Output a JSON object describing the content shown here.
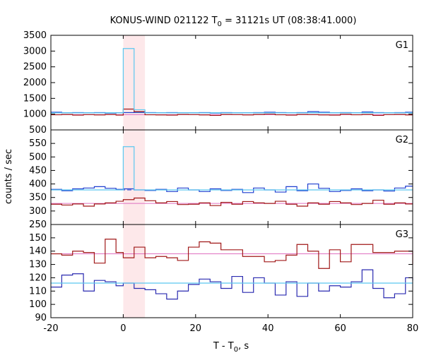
{
  "chart_data": {
    "type": "line",
    "title": {
      "main": "KONUS-WIND 021122 T",
      "sub": "0",
      "rest": " = 31121s UT (08:38:41.000)"
    },
    "xlabel": {
      "main": "T - T",
      "sub": "0",
      "rest": ", s"
    },
    "ylabel": "counts / sec",
    "xlim": [
      -20,
      80
    ],
    "xticks": [
      "-20",
      "0",
      "20",
      "40",
      "60",
      "80"
    ],
    "highlight": {
      "x0": 0,
      "x1": 6,
      "color": "#fde8ea"
    },
    "panels": [
      {
        "name": "G1",
        "ylim": [
          500,
          3500
        ],
        "yticks": [
          "500",
          "1000",
          "1500",
          "2000",
          "2500",
          "3000",
          "3500"
        ],
        "series": [
          {
            "color": "#1f3fd0",
            "x": [
              -20,
              -17,
              -14,
              -11,
              -8,
              -5,
              -2,
              0,
              3,
              6,
              9,
              12,
              15,
              18,
              21,
              24,
              27,
              30,
              33,
              36,
              39,
              42,
              45,
              48,
              51,
              54,
              57,
              60,
              63,
              66,
              69,
              72,
              75,
              78,
              80
            ],
            "values": [
              1060,
              1040,
              1050,
              1040,
              1050,
              1030,
              1040,
              1050,
              1060,
              1050,
              1040,
              1050,
              1040,
              1040,
              1050,
              1030,
              1050,
              1040,
              1040,
              1050,
              1060,
              1050,
              1040,
              1050,
              1080,
              1060,
              1040,
              1050,
              1040,
              1070,
              1050,
              1040,
              1050,
              1060,
              1060
            ]
          },
          {
            "color": "#a01818",
            "x": [
              -20,
              -17,
              -14,
              -11,
              -8,
              -5,
              -2,
              0,
              3,
              6,
              9,
              12,
              15,
              18,
              21,
              24,
              27,
              30,
              33,
              36,
              39,
              42,
              45,
              48,
              51,
              54,
              57,
              60,
              63,
              66,
              69,
              72,
              75,
              78,
              80
            ],
            "values": [
              980,
              990,
              970,
              985,
              975,
              990,
              970,
              1160,
              1080,
              980,
              975,
              970,
              990,
              985,
              975,
              960,
              990,
              985,
              975,
              990,
              1000,
              980,
              970,
              990,
              985,
              975,
              970,
              995,
              980,
              990,
              960,
              985,
              990,
              975,
              975
            ]
          },
          {
            "color": "#5bc8f0",
            "x": [
              -20,
              -17,
              -14,
              -11,
              -8,
              -5,
              -2,
              0,
              3,
              6,
              9,
              12,
              15,
              18,
              21,
              24,
              27,
              30,
              33,
              36,
              39,
              42,
              45,
              48,
              51,
              54,
              57,
              60,
              63,
              66,
              69,
              72,
              75,
              78,
              80
            ],
            "values": [
              1040,
              1040,
              1040,
              1040,
              1040,
              1040,
              1040,
              3080,
              1140,
              1040,
              1040,
              1040,
              1040,
              1040,
              1040,
              1040,
              1040,
              1040,
              1040,
              1040,
              1040,
              1040,
              1040,
              1040,
              1040,
              1040,
              1040,
              1040,
              1040,
              1040,
              1040,
              1040,
              1040,
              1040,
              1040
            ]
          }
        ],
        "baselines": [
          {
            "color": "#5bc8f0",
            "value": 1045,
            "dash": false
          },
          {
            "color": "#e070c0",
            "value": 985,
            "dash": false
          }
        ]
      },
      {
        "name": "G2",
        "ylim": [
          250,
          600
        ],
        "yticks": [
          "250",
          "300",
          "350",
          "400",
          "450",
          "500",
          "550",
          "600"
        ],
        "series": [
          {
            "color": "#1f3fd0",
            "x": [
              -20,
              -17,
              -14,
              -11,
              -8,
              -5,
              -2,
              0,
              3,
              6,
              9,
              12,
              15,
              18,
              21,
              24,
              27,
              30,
              33,
              36,
              39,
              42,
              45,
              48,
              51,
              54,
              57,
              60,
              63,
              66,
              69,
              72,
              75,
              78,
              80
            ],
            "values": [
              380,
              375,
              382,
              385,
              390,
              384,
              380,
              382,
              378,
              376,
              380,
              372,
              385,
              378,
              372,
              382,
              376,
              380,
              368,
              385,
              378,
              370,
              390,
              375,
              400,
              384,
              372,
              376,
              382,
              375,
              378,
              374,
              385,
              392,
              392
            ]
          },
          {
            "color": "#a01818",
            "x": [
              -20,
              -17,
              -14,
              -11,
              -8,
              -5,
              -2,
              0,
              3,
              6,
              9,
              12,
              15,
              18,
              21,
              24,
              27,
              30,
              33,
              36,
              39,
              42,
              45,
              48,
              51,
              54,
              57,
              60,
              63,
              66,
              69,
              72,
              75,
              78,
              80
            ],
            "values": [
              325,
              322,
              326,
              318,
              326,
              330,
              336,
              342,
              348,
              338,
              330,
              335,
              324,
              325,
              330,
              320,
              332,
              325,
              335,
              330,
              328,
              336,
              325,
              318,
              330,
              325,
              335,
              330,
              324,
              328,
              340,
              325,
              330,
              326,
              326
            ]
          },
          {
            "color": "#5bc8f0",
            "x": [
              -20,
              -17,
              -14,
              -11,
              -8,
              -5,
              -2,
              0,
              3,
              6,
              9,
              12,
              15,
              18,
              21,
              24,
              27,
              30,
              33,
              36,
              39,
              42,
              45,
              48,
              51,
              54,
              57,
              60,
              63,
              66,
              69,
              72,
              75,
              78,
              80
            ],
            "values": [
              378,
              378,
              378,
              378,
              378,
              378,
              378,
              538,
              378,
              378,
              378,
              378,
              378,
              378,
              378,
              378,
              378,
              378,
              378,
              378,
              378,
              378,
              378,
              378,
              378,
              378,
              378,
              378,
              378,
              378,
              378,
              378,
              378,
              378,
              378
            ]
          }
        ],
        "baselines": [
          {
            "color": "#1f3fd0",
            "value": 378,
            "dash": true
          },
          {
            "color": "#e070c0",
            "value": 328,
            "dash": false
          }
        ]
      },
      {
        "name": "G3",
        "ylim": [
          90,
          160
        ],
        "yticks": [
          "90",
          "100",
          "110",
          "120",
          "130",
          "140",
          "150",
          "160"
        ],
        "series": [
          {
            "color": "#a01818",
            "x": [
              -20,
              -17,
              -14,
              -11,
              -8,
              -5,
              -2,
              0,
              3,
              6,
              9,
              12,
              15,
              18,
              21,
              24,
              27,
              30,
              33,
              36,
              39,
              42,
              45,
              48,
              51,
              54,
              57,
              60,
              63,
              66,
              69,
              72,
              75,
              78,
              80
            ],
            "values": [
              138,
              137,
              140,
              139,
              131,
              149,
              139,
              135,
              143,
              135,
              136,
              135,
              133,
              143,
              147,
              146,
              141,
              141,
              136,
              136,
              132,
              133,
              137,
              145,
              140,
              127,
              141,
              132,
              145,
              145,
              139,
              139,
              140,
              140,
              130
            ]
          },
          {
            "color": "#2a2ab0",
            "x": [
              -20,
              -17,
              -14,
              -11,
              -8,
              -5,
              -2,
              0,
              3,
              6,
              9,
              12,
              15,
              18,
              21,
              24,
              27,
              30,
              33,
              36,
              39,
              42,
              45,
              48,
              51,
              54,
              57,
              60,
              63,
              66,
              69,
              72,
              75,
              78,
              80
            ],
            "values": [
              113,
              122,
              123,
              110,
              118,
              117,
              114,
              116,
              112,
              111,
              108,
              104,
              110,
              115,
              119,
              117,
              112,
              121,
              109,
              120,
              116,
              107,
              117,
              106,
              116,
              110,
              114,
              113,
              117,
              126,
              112,
              105,
              108,
              120,
              118
            ]
          },
          {
            "color": "#5bc8f0",
            "x": [
              -20,
              80
            ],
            "values": [
              116,
              116
            ]
          }
        ],
        "baselines": [
          {
            "color": "#e070c0",
            "value": 138,
            "dash": false
          },
          {
            "color": "#5bc8f0",
            "value": 116,
            "dash": false
          }
        ]
      }
    ]
  }
}
